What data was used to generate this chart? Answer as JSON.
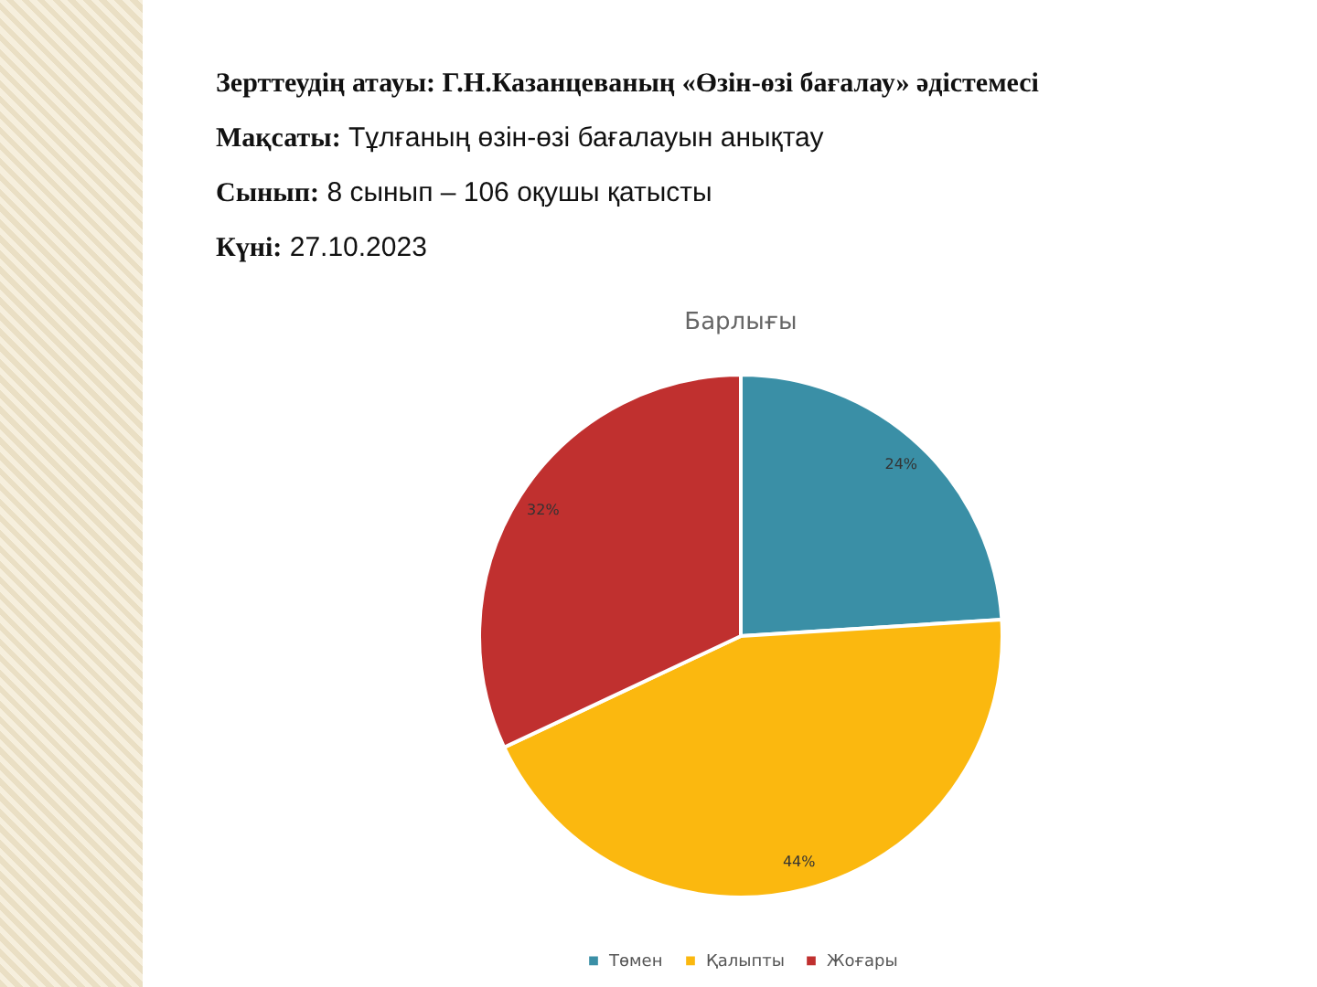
{
  "chart_data": {
    "type": "pie",
    "title": "Барлығы",
    "annotations": [
      "Зерттеудің атауы: Г.Н.Казанцеваның «Өзін-өзі бағалау» әдістемесі",
      "Мақсаты: Тұлғаның өзін-өзі бағалауын анықтау",
      "Сынып: 8 сынып – 106 оқушы қатысты",
      "Күні: 27.10.2023"
    ],
    "categories": [
      "Төмен",
      "Қалыпты",
      "Жоғары"
    ],
    "values": [
      24,
      44,
      32
    ],
    "colors": [
      "#3a8fa6",
      "#fbb80f",
      "#c0302f"
    ],
    "value_labels": [
      "24%",
      "44%",
      "32%"
    ],
    "legend": "bottom"
  }
}
